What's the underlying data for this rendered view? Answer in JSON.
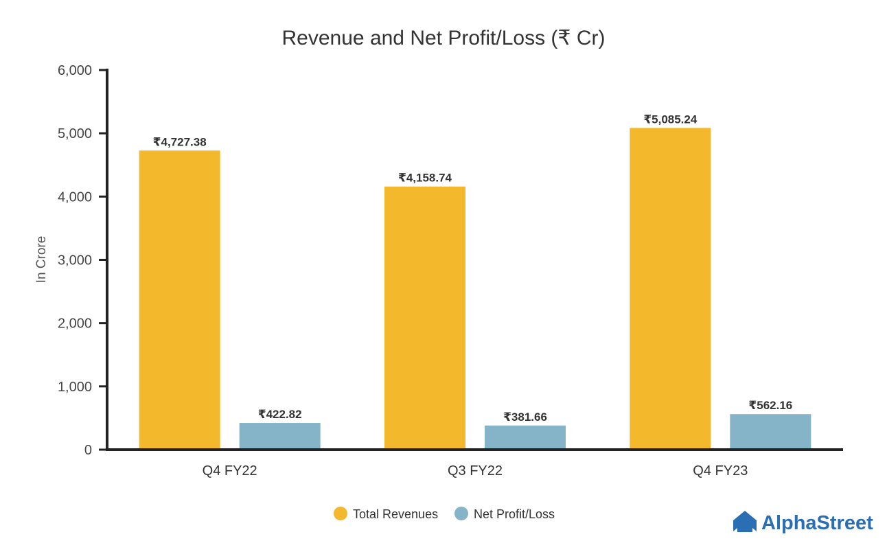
{
  "chart_data": {
    "type": "bar",
    "title": "Revenue and Net Profit/Loss (₹ Cr)",
    "ylabel": "In Crore",
    "xlabel": "",
    "ylim": [
      0,
      6000
    ],
    "yticks": [
      0,
      1000,
      2000,
      3000,
      4000,
      5000,
      6000
    ],
    "ytick_labels": [
      "0",
      "1,000",
      "2,000",
      "3,000",
      "4,000",
      "5,000",
      "6,000"
    ],
    "categories": [
      "Q4 FY22",
      "Q3 FY22",
      "Q4 FY23"
    ],
    "series": [
      {
        "name": "Total Revenues",
        "color": "#f4b82d",
        "values": [
          4727.38,
          4158.74,
          5085.24
        ],
        "labels": [
          "₹4,727.38",
          "₹4,158.74",
          "₹5,085.24"
        ]
      },
      {
        "name": "Net Profit/Loss",
        "color": "#85b4c9",
        "values": [
          422.82,
          381.66,
          562.16
        ],
        "labels": [
          "₹422.82",
          "₹381.66",
          "₹562.16"
        ]
      }
    ],
    "grid": false,
    "legend_position": "bottom-center"
  },
  "brand": {
    "name": "AlphaStreet",
    "logo_icon": "alphastreet-logo-icon",
    "color": "#2a6fb3"
  },
  "colors": {
    "axis": "#222222"
  }
}
